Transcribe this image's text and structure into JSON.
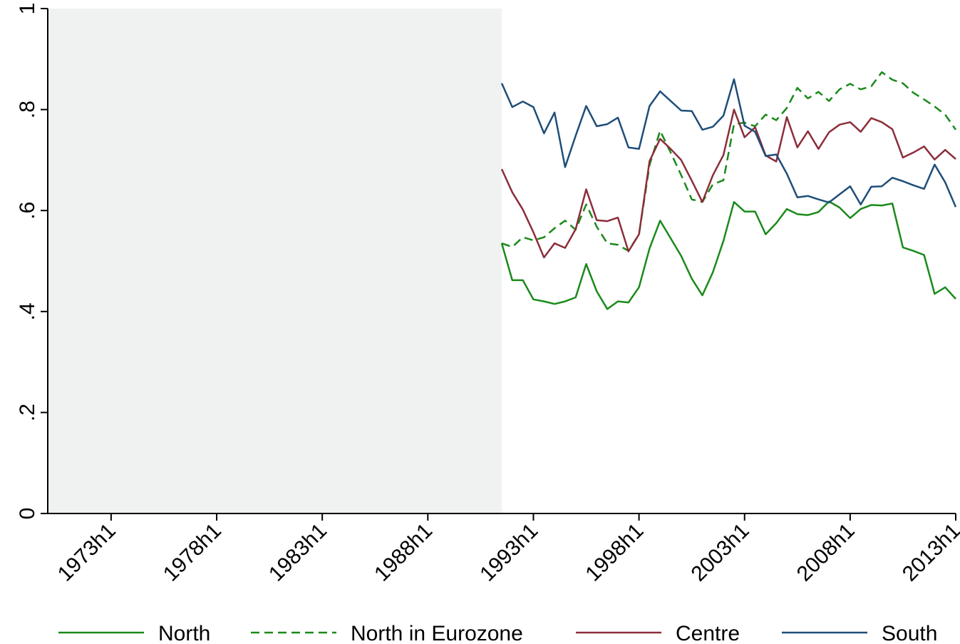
{
  "chart_data": {
    "type": "line",
    "title": "",
    "xlabel": "",
    "ylabel": "",
    "x_tick_labels": [
      "1973h1",
      "1978h1",
      "1983h1",
      "1988h1",
      "1993h1",
      "1998h1",
      "2003h1",
      "2008h1",
      "2013h1"
    ],
    "y_tick_labels": [
      "0",
      ".2",
      ".4",
      ".6",
      ".8",
      "1"
    ],
    "ylim": [
      0,
      1
    ],
    "xlim": [
      "1970h1",
      "2013h1"
    ],
    "shaded_region": {
      "from": "1970h1",
      "to": "1991h2",
      "color": "#f0f2f2"
    },
    "grid": false,
    "legend_position": "bottom",
    "x": [
      "1991h2",
      "1992h1",
      "1992h2",
      "1993h1",
      "1993h2",
      "1994h1",
      "1994h2",
      "1995h1",
      "1995h2",
      "1996h1",
      "1996h2",
      "1997h1",
      "1997h2",
      "1998h1",
      "1998h2",
      "1999h1",
      "1999h2",
      "2000h1",
      "2000h2",
      "2001h1",
      "2001h2",
      "2002h1",
      "2002h2",
      "2003h1",
      "2003h2",
      "2004h1",
      "2004h2",
      "2005h1",
      "2005h2",
      "2006h1",
      "2006h2",
      "2007h1",
      "2007h2",
      "2008h1",
      "2008h2",
      "2009h1",
      "2009h2",
      "2010h1",
      "2010h2",
      "2011h1",
      "2011h2",
      "2012h1",
      "2012h2",
      "2013h1"
    ],
    "series": [
      {
        "name": "North",
        "color": "#1a8a1a",
        "dash": "solid",
        "values": [
          0.535,
          0.462,
          0.462,
          0.424,
          0.42,
          0.415,
          0.42,
          0.428,
          0.494,
          0.44,
          0.405,
          0.42,
          0.418,
          0.448,
          0.525,
          0.58,
          0.545,
          0.51,
          0.465,
          0.432,
          0.478,
          0.54,
          0.617,
          0.598,
          0.598,
          0.553,
          0.575,
          0.603,
          0.593,
          0.591,
          0.597,
          0.618,
          0.606,
          0.585,
          0.603,
          0.611,
          0.61,
          0.614,
          0.527,
          0.52,
          0.512,
          0.435,
          0.448,
          0.425
        ]
      },
      {
        "name": "North in Eurozone",
        "color": "#1a8a1a",
        "dash": "dashed",
        "values": [
          0.535,
          0.528,
          0.547,
          0.541,
          0.547,
          0.565,
          0.58,
          0.562,
          0.612,
          0.568,
          0.535,
          0.532,
          0.52,
          0.553,
          0.69,
          0.758,
          0.715,
          0.67,
          0.622,
          0.617,
          0.652,
          0.66,
          0.771,
          0.774,
          0.767,
          0.79,
          0.779,
          0.803,
          0.843,
          0.822,
          0.835,
          0.817,
          0.84,
          0.851,
          0.84,
          0.846,
          0.874,
          0.859,
          0.852,
          0.833,
          0.82,
          0.806,
          0.79,
          0.76
        ]
      },
      {
        "name": "Centre",
        "color": "#8b2e3a",
        "dash": "solid",
        "values": [
          0.682,
          0.636,
          0.602,
          0.557,
          0.507,
          0.535,
          0.526,
          0.563,
          0.642,
          0.581,
          0.579,
          0.586,
          0.519,
          0.553,
          0.698,
          0.742,
          0.722,
          0.7,
          0.659,
          0.617,
          0.67,
          0.71,
          0.8,
          0.745,
          0.765,
          0.709,
          0.697,
          0.785,
          0.725,
          0.757,
          0.722,
          0.755,
          0.77,
          0.775,
          0.756,
          0.783,
          0.775,
          0.761,
          0.705,
          0.715,
          0.727,
          0.701,
          0.72,
          0.702
        ]
      },
      {
        "name": "South",
        "color": "#1f4e79",
        "dash": "solid",
        "values": [
          0.852,
          0.805,
          0.816,
          0.805,
          0.753,
          0.794,
          0.686,
          0.748,
          0.807,
          0.767,
          0.771,
          0.784,
          0.725,
          0.722,
          0.807,
          0.836,
          0.817,
          0.798,
          0.797,
          0.76,
          0.766,
          0.788,
          0.86,
          0.768,
          0.756,
          0.708,
          0.711,
          0.673,
          0.626,
          0.629,
          0.622,
          0.616,
          0.632,
          0.648,
          0.612,
          0.647,
          0.648,
          0.665,
          0.658,
          0.65,
          0.643,
          0.691,
          0.656,
          0.607
        ]
      }
    ]
  }
}
